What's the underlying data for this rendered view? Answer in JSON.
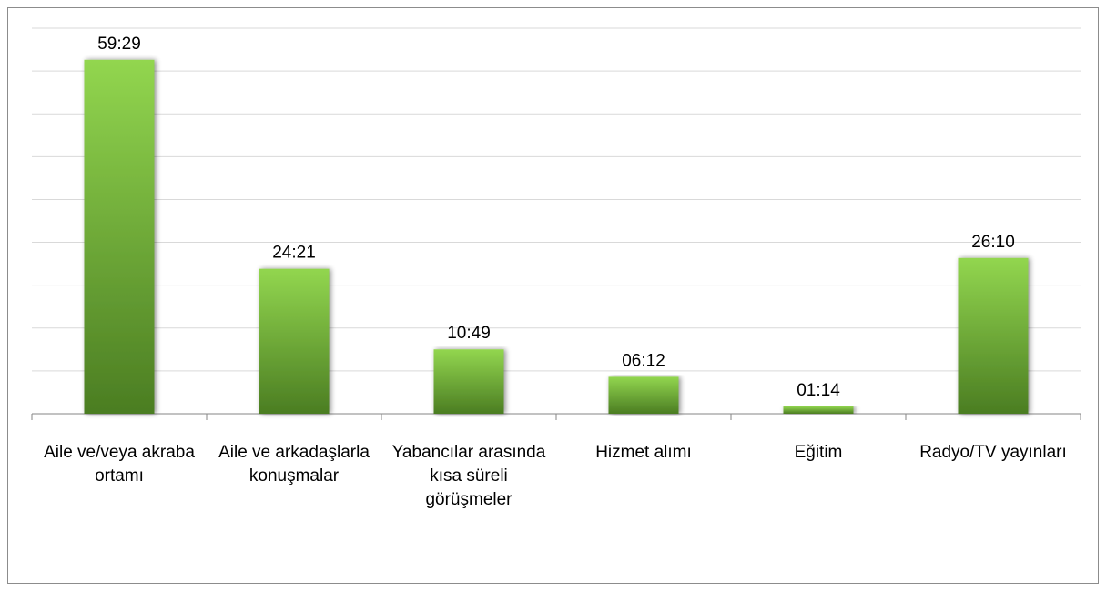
{
  "chart_data": {
    "type": "bar",
    "categories": [
      "Aile ve/veya akraba ortamı",
      "Aile ve arkadaşlarla konuşmalar",
      "Yabancılar arasında kısa süreli görüşmeler",
      "Hizmet alımı",
      "Eğitim",
      "Radyo/TV yayınları"
    ],
    "values": [
      59.4833,
      24.35,
      10.8167,
      6.2,
      1.2333,
      26.1667
    ],
    "value_labels": [
      "59:29",
      "24:21",
      "10:49",
      "06:12",
      "01:14",
      "26:10"
    ],
    "color": "#6fae36",
    "ylim": [
      0,
      64.8
    ],
    "yticks": [
      0,
      7.2,
      14.4,
      21.6,
      28.8,
      36,
      43.2,
      50.4,
      57.6,
      64.8
    ],
    "grid": true
  }
}
